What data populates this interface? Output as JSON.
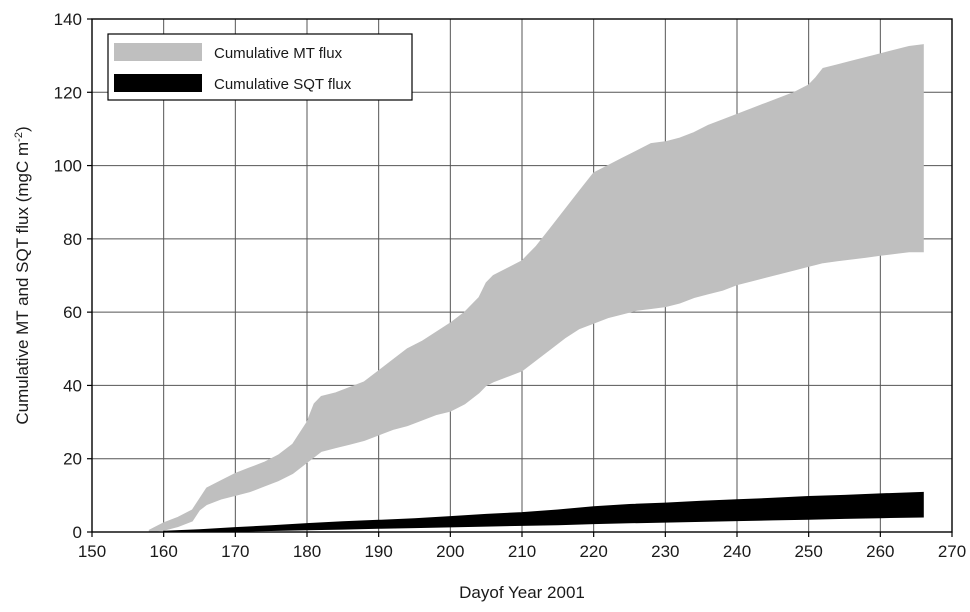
{
  "chart_data": {
    "type": "area",
    "title": "",
    "xlabel": "Dayof Year 2001",
    "ylabel": "Cumulative MT and SQT flux (mgC m",
    "ylabel_sup": "-2",
    "ylabel_end": ")",
    "xlim": [
      150,
      270
    ],
    "ylim": [
      0,
      140
    ],
    "x_ticks": [
      150,
      160,
      170,
      180,
      190,
      200,
      210,
      220,
      230,
      240,
      250,
      260,
      270
    ],
    "y_ticks": [
      0,
      20,
      40,
      60,
      80,
      100,
      120,
      140
    ],
    "grid": true,
    "legend_position": "top-left",
    "series": [
      {
        "name": "Cumulative MT flux",
        "color": "#bfbfbf",
        "x": [
          158,
          160,
          162,
          164,
          165,
          166,
          168,
          170,
          172,
          174,
          176,
          178,
          180,
          181,
          182,
          184,
          186,
          188,
          190,
          192,
          194,
          196,
          198,
          200,
          202,
          204,
          205,
          206,
          208,
          210,
          212,
          214,
          216,
          218,
          220,
          222,
          224,
          226,
          228,
          230,
          232,
          234,
          236,
          238,
          240,
          242,
          244,
          246,
          248,
          250,
          251,
          252,
          254,
          256,
          258,
          260,
          262,
          264,
          266
        ],
        "upper": [
          0.5,
          2.5,
          4,
          6,
          9,
          12,
          14,
          16,
          17.5,
          19,
          21,
          24,
          30,
          35,
          37,
          38,
          39.5,
          41,
          44,
          47,
          50,
          52,
          54.5,
          57,
          60,
          64,
          68,
          70,
          72,
          74,
          78,
          83,
          88,
          93,
          98,
          100,
          102,
          104,
          106,
          106.5,
          107.5,
          109,
          111,
          112.5,
          114,
          115.5,
          117,
          118.5,
          120,
          122,
          124,
          126.5,
          127.5,
          128.5,
          129.5,
          130.5,
          131.5,
          132.5,
          133
        ],
        "lower": [
          0,
          0.5,
          1.5,
          3,
          6,
          7.5,
          9,
          10,
          11,
          12.5,
          14,
          16,
          19,
          20.5,
          22,
          23,
          24,
          25,
          26.5,
          28,
          29,
          30.5,
          32,
          33,
          35,
          38,
          40,
          41,
          42.5,
          44,
          47,
          50,
          53,
          55.5,
          57,
          58.5,
          59.5,
          60.5,
          61,
          61.5,
          62.5,
          64,
          65,
          66,
          67.5,
          68.5,
          69.5,
          70.5,
          71.5,
          72.5,
          73,
          73.5,
          74,
          74.5,
          75,
          75.5,
          76,
          76.5,
          76.5
        ]
      },
      {
        "name": "Cumulative SQT flux",
        "color": "#000000",
        "x": [
          160,
          165,
          170,
          175,
          180,
          185,
          190,
          195,
          200,
          205,
          210,
          215,
          220,
          225,
          230,
          235,
          240,
          245,
          250,
          255,
          260,
          266
        ],
        "upper": [
          0.2,
          0.6,
          1.2,
          1.7,
          2.3,
          2.8,
          3.2,
          3.6,
          4.2,
          4.8,
          5.3,
          6.0,
          6.9,
          7.5,
          7.9,
          8.4,
          8.8,
          9.2,
          9.7,
          10.0,
          10.4,
          10.8
        ],
        "lower": [
          0,
          0.05,
          0.2,
          0.4,
          0.6,
          0.8,
          1.0,
          1.2,
          1.4,
          1.6,
          1.8,
          2.0,
          2.3,
          2.5,
          2.7,
          2.9,
          3.1,
          3.3,
          3.5,
          3.7,
          3.9,
          4.1
        ]
      }
    ]
  }
}
